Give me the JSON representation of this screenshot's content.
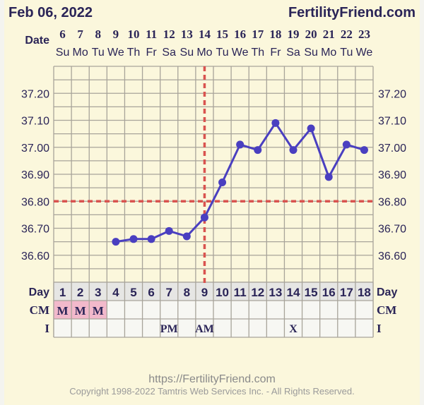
{
  "header": {
    "date": "Feb 06, 2022",
    "brand": "FertilityFriend.com"
  },
  "labels": {
    "date": "Date",
    "day": "Day",
    "cm": "CM",
    "intercourse": "I"
  },
  "footer": {
    "url": "https://FertilityFriend.com",
    "copyright": "Copyright 1998-2022 Tamtris Web Services Inc. - All Rights Reserved."
  },
  "colors": {
    "background": "#fbf7dc",
    "line": "#4a3fc0",
    "coverline": "#d9534f",
    "text": "#2a2457",
    "cm_menstruation": "#f2b9cb",
    "day_row": "#e6e6e4"
  },
  "chart_data": {
    "type": "line",
    "dates": [
      "6",
      "7",
      "8",
      "9",
      "10",
      "11",
      "12",
      "13",
      "14",
      "15",
      "16",
      "17",
      "18",
      "19",
      "20",
      "21",
      "22",
      "23"
    ],
    "weekdays": [
      "Su",
      "Mo",
      "Tu",
      "We",
      "Th",
      "Fr",
      "Sa",
      "Su",
      "Mo",
      "Tu",
      "We",
      "Th",
      "Fr",
      "Sa",
      "Su",
      "Mo",
      "Tu",
      "We"
    ],
    "days": [
      1,
      2,
      3,
      4,
      5,
      6,
      7,
      8,
      9,
      10,
      11,
      12,
      13,
      14,
      15,
      16,
      17,
      18
    ],
    "temperatures": [
      null,
      null,
      null,
      36.65,
      36.66,
      36.66,
      36.69,
      36.67,
      36.74,
      36.87,
      37.01,
      36.99,
      37.09,
      36.99,
      37.07,
      36.89,
      37.01,
      36.99
    ],
    "yticks": [
      "37.20",
      "37.10",
      "37.00",
      "36.90",
      "36.80",
      "36.70",
      "36.60"
    ],
    "ylim": [
      36.5,
      37.3
    ],
    "coverline": 36.8,
    "ovulation_day": 9,
    "cm": [
      "M",
      "M",
      "M",
      "",
      "",
      "",
      "",
      "",
      "",
      "",
      "",
      "",
      "",
      "",
      "",
      "",
      "",
      ""
    ],
    "intercourse": [
      "",
      "",
      "",
      "",
      "",
      "",
      "PM",
      "",
      "AM",
      "",
      "",
      "",
      "",
      "X",
      "",
      "",
      "",
      ""
    ],
    "grid": true
  }
}
